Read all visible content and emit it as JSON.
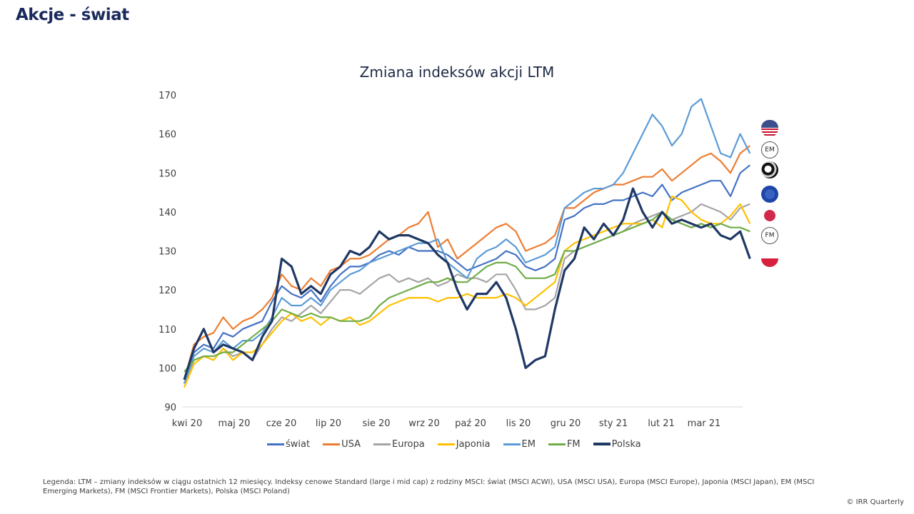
{
  "page": {
    "title": "Akcje - świat"
  },
  "flags": [
    {
      "name": "usa-flag-icon",
      "label": ""
    },
    {
      "name": "em-badge-icon",
      "label": "EM"
    },
    {
      "name": "globe-icon",
      "label": ""
    },
    {
      "name": "eu-flag-icon",
      "label": ""
    },
    {
      "name": "japan-flag-icon",
      "label": ""
    },
    {
      "name": "fm-badge-icon",
      "label": "FM"
    },
    {
      "name": "poland-flag-icon",
      "label": ""
    }
  ],
  "footnote": {
    "line1": "Legenda:  LTM – zmiany indeksów w ciągu ostatnich 12 miesięcy.  Indeksy cenowe Standard  (large  i mid cap)  z rodziny MSCI:  świat (MSCI ACWI),  USA (MSCI USA),  Europa (MSCI Europe),  Japonia (MSCI Japan),  EM (MSCI",
    "line2": "Emerging  Markets),  FM (MSCI Frontier Markets),  Polska (MSCI Poland)",
    "copyright": "© IRR Quarterly"
  },
  "chart_data": {
    "type": "line",
    "title": "Zmiana indeksów akcji LTM",
    "xlabel": "",
    "ylabel": "",
    "ylim": [
      90,
      170
    ],
    "yticks": [
      90,
      100,
      110,
      120,
      130,
      140,
      150,
      160,
      170
    ],
    "ytick_labels": [
      "90",
      "100",
      "110",
      "120",
      "130",
      "140",
      "150",
      "160",
      "170"
    ],
    "xticks": [
      "kwi 20",
      "maj 20",
      "cze 20",
      "lip 20",
      "sie 20",
      "wrz 20",
      "paź 20",
      "lis 20",
      "gru 20",
      "sty 21",
      "lut 21",
      "mar 21"
    ],
    "x_range_months": [
      0,
      11.6
    ],
    "grid": false,
    "legend_position": "bottom",
    "series": [
      {
        "name": "świat",
        "color": "#4472c4",
        "width": 2.2,
        "x": [
          0,
          0.2,
          0.4,
          0.6,
          0.8,
          1.0,
          1.2,
          1.4,
          1.6,
          1.8,
          2.0,
          2.2,
          2.4,
          2.6,
          2.8,
          3.0,
          3.2,
          3.4,
          3.6,
          3.8,
          4.0,
          4.2,
          4.4,
          4.6,
          4.8,
          5.0,
          5.2,
          5.4,
          5.6,
          5.8,
          6.0,
          6.2,
          6.4,
          6.6,
          6.8,
          7.0,
          7.2,
          7.4,
          7.6,
          7.8,
          8.0,
          8.2,
          8.4,
          8.6,
          8.8,
          9.0,
          9.2,
          9.4,
          9.6,
          9.8,
          10.0,
          10.2,
          10.4,
          10.6,
          10.8,
          11.0,
          11.2,
          11.4,
          11.6
        ],
        "y": [
          97,
          104,
          106,
          105,
          109,
          108,
          110,
          111,
          112,
          117,
          121,
          119,
          118,
          120,
          117,
          121,
          124,
          126,
          126,
          127,
          129,
          130,
          129,
          131,
          130,
          130,
          130,
          129,
          127,
          125,
          126,
          127,
          128,
          130,
          129,
          126,
          125,
          126,
          128,
          138,
          139,
          141,
          142,
          142,
          143,
          143,
          144,
          145,
          144,
          147,
          143,
          145,
          146,
          147,
          148,
          148,
          144,
          150,
          152
        ]
      },
      {
        "name": "USA",
        "color": "#ed7d31",
        "width": 2.2,
        "x": [
          0,
          0.2,
          0.4,
          0.6,
          0.8,
          1.0,
          1.2,
          1.4,
          1.6,
          1.8,
          2.0,
          2.2,
          2.4,
          2.6,
          2.8,
          3.0,
          3.2,
          3.4,
          3.6,
          3.8,
          4.0,
          4.2,
          4.4,
          4.6,
          4.8,
          5.0,
          5.2,
          5.4,
          5.6,
          5.8,
          6.0,
          6.2,
          6.4,
          6.6,
          6.8,
          7.0,
          7.2,
          7.4,
          7.6,
          7.8,
          8.0,
          8.2,
          8.4,
          8.6,
          8.8,
          9.0,
          9.2,
          9.4,
          9.6,
          9.8,
          10.0,
          10.2,
          10.4,
          10.6,
          10.8,
          11.0,
          11.2,
          11.4,
          11.6
        ],
        "y": [
          97,
          106,
          108,
          109,
          113,
          110,
          112,
          113,
          115,
          118,
          124,
          121,
          120,
          123,
          121,
          125,
          126,
          128,
          128,
          129,
          131,
          133,
          134,
          136,
          137,
          140,
          131,
          133,
          128,
          130,
          132,
          134,
          136,
          137,
          135,
          130,
          131,
          132,
          134,
          141,
          141,
          143,
          145,
          146,
          147,
          147,
          148,
          149,
          149,
          151,
          148,
          150,
          152,
          154,
          155,
          153,
          150,
          155,
          157
        ]
      },
      {
        "name": "Europa",
        "color": "#a5a5a5",
        "width": 2.2,
        "x": [
          0,
          0.2,
          0.4,
          0.6,
          0.8,
          1.0,
          1.2,
          1.4,
          1.6,
          1.8,
          2.0,
          2.2,
          2.4,
          2.6,
          2.8,
          3.0,
          3.2,
          3.4,
          3.6,
          3.8,
          4.0,
          4.2,
          4.4,
          4.6,
          4.8,
          5.0,
          5.2,
          5.4,
          5.6,
          5.8,
          6.0,
          6.2,
          6.4,
          6.6,
          6.8,
          7.0,
          7.2,
          7.4,
          7.6,
          7.8,
          8.0,
          8.2,
          8.4,
          8.6,
          8.8,
          9.0,
          9.2,
          9.4,
          9.6,
          9.8,
          10.0,
          10.2,
          10.4,
          10.6,
          10.8,
          11.0,
          11.2,
          11.4,
          11.6
        ],
        "y": [
          96,
          102,
          103,
          102,
          105,
          103,
          104,
          102,
          106,
          110,
          113,
          112,
          114,
          116,
          114,
          117,
          120,
          120,
          119,
          121,
          123,
          124,
          122,
          123,
          122,
          123,
          121,
          122,
          124,
          123,
          123,
          122,
          124,
          124,
          120,
          115,
          115,
          116,
          118,
          128,
          130,
          131,
          132,
          133,
          134,
          135,
          137,
          138,
          139,
          140,
          138,
          139,
          140,
          142,
          141,
          140,
          138,
          141,
          142
        ]
      },
      {
        "name": "Japonia",
        "color": "#ffc000",
        "width": 2.2,
        "x": [
          0,
          0.2,
          0.4,
          0.6,
          0.8,
          1.0,
          1.2,
          1.4,
          1.6,
          1.8,
          2.0,
          2.2,
          2.4,
          2.6,
          2.8,
          3.0,
          3.2,
          3.4,
          3.6,
          3.8,
          4.0,
          4.2,
          4.4,
          4.6,
          4.8,
          5.0,
          5.2,
          5.4,
          5.6,
          5.8,
          6.0,
          6.2,
          6.4,
          6.6,
          6.8,
          7.0,
          7.2,
          7.4,
          7.6,
          7.8,
          8.0,
          8.2,
          8.4,
          8.6,
          8.8,
          9.0,
          9.2,
          9.4,
          9.6,
          9.8,
          10.0,
          10.2,
          10.4,
          10.6,
          10.8,
          11.0,
          11.2,
          11.4,
          11.6
        ],
        "y": [
          95,
          101,
          103,
          102,
          105,
          102,
          104,
          104,
          106,
          109,
          112,
          114,
          112,
          113,
          111,
          113,
          112,
          113,
          111,
          112,
          114,
          116,
          117,
          118,
          118,
          118,
          117,
          118,
          118,
          119,
          118,
          118,
          118,
          119,
          118,
          116,
          118,
          120,
          122,
          130,
          132,
          133,
          134,
          135,
          136,
          137,
          137,
          137,
          138,
          136,
          144,
          143,
          140,
          138,
          137,
          137,
          139,
          142,
          137
        ]
      },
      {
        "name": "EM",
        "color": "#5b9bd5",
        "width": 2.2,
        "x": [
          0,
          0.2,
          0.4,
          0.6,
          0.8,
          1.0,
          1.2,
          1.4,
          1.6,
          1.8,
          2.0,
          2.2,
          2.4,
          2.6,
          2.8,
          3.0,
          3.2,
          3.4,
          3.6,
          3.8,
          4.0,
          4.2,
          4.4,
          4.6,
          4.8,
          5.0,
          5.2,
          5.4,
          5.6,
          5.8,
          6.0,
          6.2,
          6.4,
          6.6,
          6.8,
          7.0,
          7.2,
          7.4,
          7.6,
          7.8,
          8.0,
          8.2,
          8.4,
          8.6,
          8.8,
          9.0,
          9.2,
          9.4,
          9.6,
          9.8,
          10.0,
          10.2,
          10.4,
          10.6,
          10.8,
          11.0,
          11.2,
          11.4,
          11.6
        ],
        "y": [
          96,
          103,
          105,
          104,
          107,
          105,
          107,
          107,
          109,
          113,
          118,
          116,
          116,
          118,
          116,
          120,
          122,
          124,
          125,
          127,
          128,
          129,
          130,
          131,
          132,
          132,
          133,
          127,
          125,
          123,
          128,
          130,
          131,
          133,
          131,
          127,
          128,
          129,
          131,
          141,
          143,
          145,
          146,
          146,
          147,
          150,
          155,
          160,
          165,
          162,
          157,
          160,
          167,
          169,
          162,
          155,
          154,
          160,
          155
        ]
      },
      {
        "name": "FM",
        "color": "#70ad47",
        "width": 2.2,
        "x": [
          0,
          0.2,
          0.4,
          0.6,
          0.8,
          1.0,
          1.2,
          1.4,
          1.6,
          1.8,
          2.0,
          2.2,
          2.4,
          2.6,
          2.8,
          3.0,
          3.2,
          3.4,
          3.6,
          3.8,
          4.0,
          4.2,
          4.4,
          4.6,
          4.8,
          5.0,
          5.2,
          5.4,
          5.6,
          5.8,
          6.0,
          6.2,
          6.4,
          6.6,
          6.8,
          7.0,
          7.2,
          7.4,
          7.6,
          7.8,
          8.0,
          8.2,
          8.4,
          8.6,
          8.8,
          9.0,
          9.2,
          9.4,
          9.6,
          9.8,
          10.0,
          10.2,
          10.4,
          10.6,
          10.8,
          11.0,
          11.2,
          11.4,
          11.6
        ],
        "y": [
          99,
          102,
          103,
          103,
          104,
          104,
          106,
          108,
          110,
          112,
          115,
          114,
          113,
          114,
          113,
          113,
          112,
          112,
          112,
          113,
          116,
          118,
          119,
          120,
          121,
          122,
          122,
          123,
          122,
          122,
          124,
          126,
          127,
          127,
          126,
          123,
          123,
          123,
          124,
          130,
          130,
          131,
          132,
          133,
          134,
          135,
          136,
          137,
          138,
          140,
          138,
          137,
          136,
          137,
          136,
          137,
          136,
          136,
          135
        ]
      },
      {
        "name": "Polska",
        "color": "#1f3864",
        "width": 3.2,
        "x": [
          0,
          0.2,
          0.4,
          0.6,
          0.8,
          1.0,
          1.2,
          1.4,
          1.6,
          1.8,
          2.0,
          2.2,
          2.4,
          2.6,
          2.8,
          3.0,
          3.2,
          3.4,
          3.6,
          3.8,
          4.0,
          4.2,
          4.4,
          4.6,
          4.8,
          5.0,
          5.2,
          5.4,
          5.6,
          5.8,
          6.0,
          6.2,
          6.4,
          6.6,
          6.8,
          7.0,
          7.2,
          7.4,
          7.6,
          7.8,
          8.0,
          8.2,
          8.4,
          8.6,
          8.8,
          9.0,
          9.2,
          9.4,
          9.6,
          9.8,
          10.0,
          10.2,
          10.4,
          10.6,
          10.8,
          11.0,
          11.2,
          11.4,
          11.6
        ],
        "y": [
          97,
          105,
          110,
          104,
          106,
          105,
          104,
          102,
          108,
          112,
          128,
          126,
          119,
          121,
          119,
          124,
          126,
          130,
          129,
          131,
          135,
          133,
          134,
          134,
          133,
          132,
          129,
          127,
          120,
          115,
          119,
          119,
          122,
          118,
          110,
          100,
          102,
          103,
          115,
          125,
          128,
          136,
          133,
          137,
          134,
          138,
          146,
          140,
          136,
          140,
          137,
          138,
          137,
          136,
          137,
          134,
          133,
          135,
          128
        ]
      }
    ]
  }
}
